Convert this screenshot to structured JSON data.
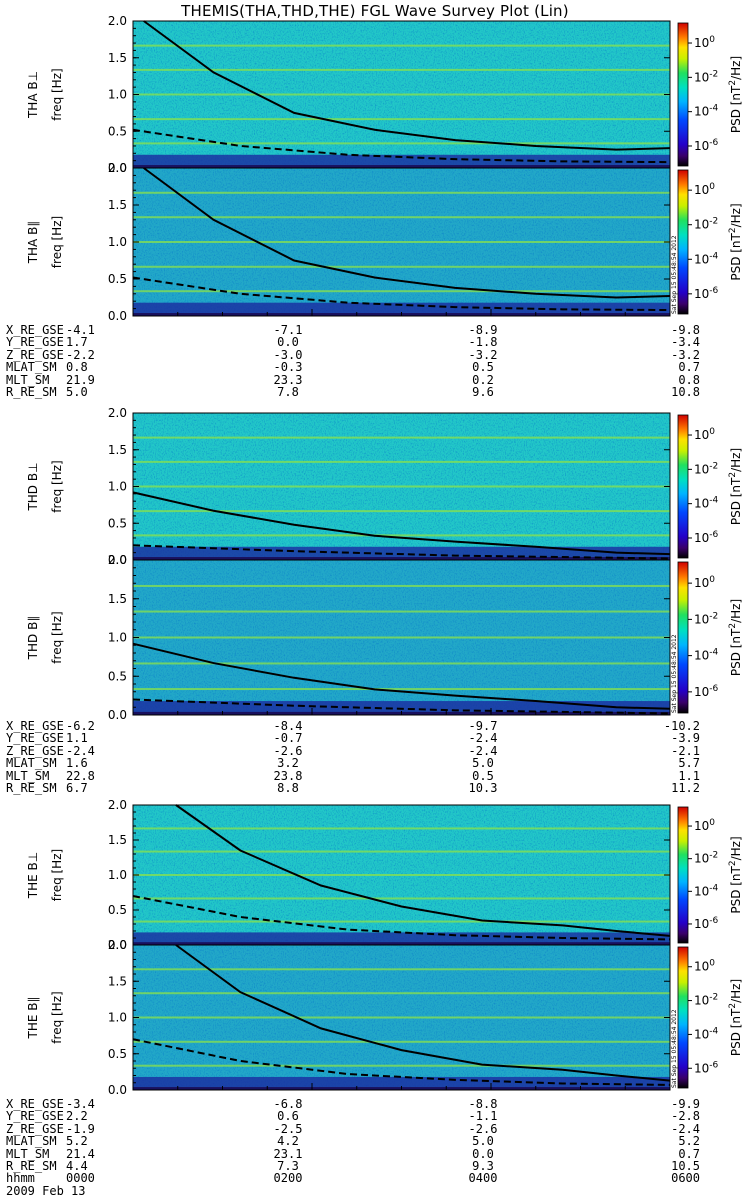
{
  "title": "THEMIS(THA,THD,THE) FGL Wave Survey Plot (Lin)",
  "chart_data": {
    "type": "heatmap",
    "y_tick_labels": [
      "0.0",
      "0.5",
      "1.0",
      "1.5",
      "2.0"
    ],
    "ylim": [
      0,
      2
    ],
    "colorbar_ticks": [
      "10^0",
      "10^-2",
      "10^-4",
      "10^-6"
    ],
    "colorbar_label": "PSD [nT^2/Hz]",
    "colorbar_label_parts": {
      "psd": "PSD",
      "unit_open": "[nT",
      "exp": "2",
      "unit_close": "/Hz]"
    },
    "stamp": "Sat Sep 15 05:48:54 2012",
    "panels": [
      {
        "probe": "THA",
        "component": "B⊥",
        "ylabel": "freq [Hz]",
        "solid": [
          [
            0.02,
            2.0
          ],
          [
            0.15,
            1.3
          ],
          [
            0.3,
            0.75
          ],
          [
            0.45,
            0.52
          ],
          [
            0.6,
            0.38
          ],
          [
            0.75,
            0.3
          ],
          [
            0.9,
            0.25
          ],
          [
            1.0,
            0.27
          ]
        ],
        "dashed": [
          [
            0.0,
            0.52
          ],
          [
            0.2,
            0.3
          ],
          [
            0.4,
            0.18
          ],
          [
            0.6,
            0.12
          ],
          [
            0.8,
            0.09
          ],
          [
            1.0,
            0.08
          ]
        ]
      },
      {
        "probe": "THA",
        "component": "B∥",
        "ylabel": "freq [Hz]",
        "solid": [
          [
            0.02,
            2.0
          ],
          [
            0.15,
            1.3
          ],
          [
            0.3,
            0.75
          ],
          [
            0.45,
            0.52
          ],
          [
            0.6,
            0.38
          ],
          [
            0.75,
            0.3
          ],
          [
            0.9,
            0.25
          ],
          [
            1.0,
            0.27
          ]
        ],
        "dashed": [
          [
            0.0,
            0.52
          ],
          [
            0.2,
            0.3
          ],
          [
            0.4,
            0.18
          ],
          [
            0.6,
            0.12
          ],
          [
            0.8,
            0.09
          ],
          [
            1.0,
            0.08
          ]
        ]
      },
      {
        "probe": "THD",
        "component": "B⊥",
        "ylabel": "freq [Hz]",
        "solid": [
          [
            0.0,
            0.92
          ],
          [
            0.15,
            0.67
          ],
          [
            0.3,
            0.48
          ],
          [
            0.45,
            0.33
          ],
          [
            0.6,
            0.25
          ],
          [
            0.75,
            0.18
          ],
          [
            0.9,
            0.1
          ],
          [
            1.0,
            0.08
          ]
        ],
        "dashed": [
          [
            0.0,
            0.2
          ],
          [
            0.3,
            0.12
          ],
          [
            0.6,
            0.06
          ],
          [
            1.0,
            0.02
          ]
        ]
      },
      {
        "probe": "THD",
        "component": "B∥",
        "ylabel": "freq [Hz]",
        "solid": [
          [
            0.0,
            0.92
          ],
          [
            0.15,
            0.67
          ],
          [
            0.3,
            0.48
          ],
          [
            0.45,
            0.33
          ],
          [
            0.6,
            0.25
          ],
          [
            0.75,
            0.18
          ],
          [
            0.9,
            0.1
          ],
          [
            1.0,
            0.08
          ]
        ],
        "dashed": [
          [
            0.0,
            0.2
          ],
          [
            0.3,
            0.12
          ],
          [
            0.6,
            0.06
          ],
          [
            1.0,
            0.02
          ]
        ]
      },
      {
        "probe": "THE",
        "component": "B⊥",
        "ylabel": "freq [Hz]",
        "solid": [
          [
            0.08,
            2.0
          ],
          [
            0.2,
            1.35
          ],
          [
            0.35,
            0.85
          ],
          [
            0.5,
            0.55
          ],
          [
            0.65,
            0.35
          ],
          [
            0.8,
            0.28
          ],
          [
            0.9,
            0.2
          ],
          [
            1.0,
            0.13
          ]
        ],
        "dashed": [
          [
            0.0,
            0.7
          ],
          [
            0.2,
            0.4
          ],
          [
            0.4,
            0.22
          ],
          [
            0.6,
            0.14
          ],
          [
            0.8,
            0.1
          ],
          [
            1.0,
            0.08
          ]
        ]
      },
      {
        "probe": "THE",
        "component": "B∥",
        "ylabel": "freq [Hz]",
        "solid": [
          [
            0.08,
            2.0
          ],
          [
            0.2,
            1.35
          ],
          [
            0.35,
            0.85
          ],
          [
            0.5,
            0.55
          ],
          [
            0.65,
            0.35
          ],
          [
            0.8,
            0.28
          ],
          [
            0.9,
            0.2
          ],
          [
            1.0,
            0.13
          ]
        ],
        "dashed": [
          [
            0.0,
            0.7
          ],
          [
            0.2,
            0.4
          ],
          [
            0.4,
            0.22
          ],
          [
            0.6,
            0.14
          ],
          [
            0.8,
            0.09
          ],
          [
            1.0,
            0.07
          ]
        ]
      }
    ]
  },
  "ephemeris": [
    {
      "rows": [
        {
          "label": "X_RE_GSE",
          "values": [
            "-4.1",
            "-7.1",
            "-8.9",
            "-9.8"
          ]
        },
        {
          "label": "Y_RE_GSE",
          "values": [
            "1.7",
            "0.0",
            "-1.8",
            "-3.4"
          ]
        },
        {
          "label": "Z_RE_GSE",
          "values": [
            "-2.2",
            "-3.0",
            "-3.2",
            "-3.2"
          ]
        },
        {
          "label": "MLAT_SM",
          "values": [
            "0.8",
            "-0.3",
            "0.5",
            "0.7"
          ]
        },
        {
          "label": "MLT_SM",
          "values": [
            "21.9",
            "23.3",
            "0.2",
            "0.8"
          ]
        },
        {
          "label": "R_RE_SM",
          "values": [
            "5.0",
            "7.8",
            "9.6",
            "10.8"
          ]
        }
      ]
    },
    {
      "rows": [
        {
          "label": "X_RE_GSE",
          "values": [
            "-6.2",
            "-8.4",
            "-9.7",
            "-10.2"
          ]
        },
        {
          "label": "Y_RE_GSE",
          "values": [
            "1.1",
            "-0.7",
            "-2.4",
            "-3.9"
          ]
        },
        {
          "label": "Z_RE_GSE",
          "values": [
            "-2.4",
            "-2.6",
            "-2.4",
            "-2.1"
          ]
        },
        {
          "label": "MLAT_SM",
          "values": [
            "1.6",
            "3.2",
            "5.0",
            "5.7"
          ]
        },
        {
          "label": "MLT_SM",
          "values": [
            "22.8",
            "23.8",
            "0.5",
            "1.1"
          ]
        },
        {
          "label": "R_RE_SM",
          "values": [
            "6.7",
            "8.8",
            "10.3",
            "11.2"
          ]
        }
      ]
    },
    {
      "rows": [
        {
          "label": "X_RE_GSE",
          "values": [
            "-3.4",
            "-6.8",
            "-8.8",
            "-9.9"
          ]
        },
        {
          "label": "Y_RE_GSE",
          "values": [
            "2.2",
            "0.6",
            "-1.1",
            "-2.8"
          ]
        },
        {
          "label": "Z_RE_GSE",
          "values": [
            "-1.9",
            "-2.5",
            "-2.6",
            "-2.4"
          ]
        },
        {
          "label": "MLAT_SM",
          "values": [
            "5.2",
            "4.2",
            "5.0",
            "5.2"
          ]
        },
        {
          "label": "MLT_SM",
          "values": [
            "21.4",
            "23.1",
            "0.0",
            "0.7"
          ]
        },
        {
          "label": "R_RE_SM",
          "values": [
            "4.4",
            "7.3",
            "9.3",
            "10.5"
          ]
        },
        {
          "label": "hhmm",
          "values": [
            "0000",
            "0200",
            "0400",
            "0600"
          ]
        }
      ]
    }
  ],
  "date": "2009 Feb 13"
}
